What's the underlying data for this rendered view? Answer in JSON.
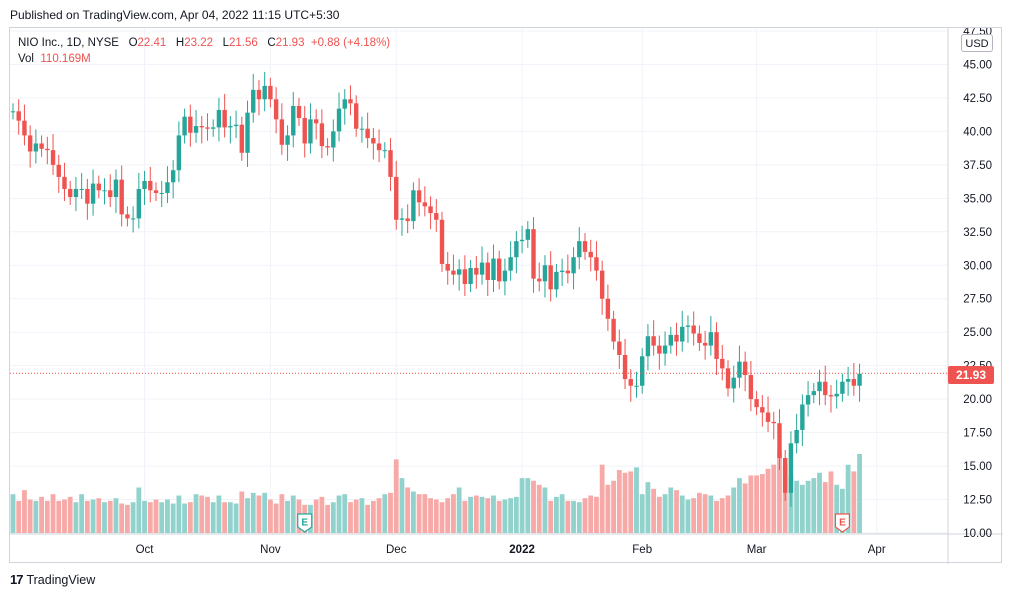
{
  "header": {
    "published_text": "Published on TradingView.com, Apr 04, 2022 11:15 UTC+5:30"
  },
  "legend": {
    "symbol": "NIO Inc., 1D, NYSE",
    "o_label": "O",
    "o_value": "22.41",
    "h_label": "H",
    "h_value": "23.22",
    "l_label": "L",
    "l_value": "21.56",
    "c_label": "C",
    "c_value": "21.93",
    "change": "+0.88 (+4.18%)",
    "vol_label": "Vol",
    "vol_value": "110.169M"
  },
  "price_axis": {
    "currency": "USD",
    "last_price": "21.93"
  },
  "footer": {
    "brand": "TradingView"
  },
  "colors": {
    "up": "#26a69a",
    "down": "#ef5350",
    "up_volume": "#92d2cc",
    "down_volume": "#f7a9a7",
    "grid": "#f0f3fa",
    "axis_text": "#131722"
  },
  "chart_data": {
    "type": "candlestick",
    "y_ticks": [
      "10.00",
      "12.50",
      "15.00",
      "17.50",
      "20.00",
      "22.50",
      "25.00",
      "27.50",
      "30.00",
      "32.50",
      "35.00",
      "37.50",
      "40.00",
      "42.50",
      "45.00",
      "47.50"
    ],
    "ylim": [
      10,
      47.5
    ],
    "x_tick_labels": [
      "Oct",
      "Nov",
      "Dec",
      "2022",
      "Feb",
      "Mar",
      "Apr"
    ],
    "x_tick_index": [
      23,
      45,
      67,
      89,
      110,
      130,
      151
    ],
    "last_close": 21.93,
    "events": [
      {
        "label": "E",
        "index": 51,
        "kind": "earnings-past"
      },
      {
        "label": "E",
        "index": 145,
        "kind": "earnings-upcoming"
      }
    ],
    "closes": [
      41.5,
      40.8,
      39.7,
      38.5,
      39.1,
      38.7,
      38.6,
      37.5,
      36.6,
      35.7,
      35.1,
      35.7,
      35.7,
      34.6,
      36.1,
      35.6,
      35.6,
      35.1,
      36.4,
      33.8,
      33.5,
      33.5,
      35.7,
      36.3,
      35.6,
      35.4,
      35.4,
      36.2,
      37.1,
      39.7,
      41.1,
      39.9,
      40.4,
      40.3,
      40.2,
      40.3,
      41.6,
      40.3,
      40.4,
      40.5,
      38.4,
      41.4,
      43.1,
      42.4,
      43.4,
      42.4,
      40.9,
      39.0,
      39.7,
      41.9,
      41.0,
      39.1,
      40.9,
      40.6,
      38.9,
      38.8,
      40.0,
      41.7,
      42.4,
      42.1,
      40.2,
      40.2,
      39.5,
      39.1,
      38.6,
      38.6,
      36.6,
      33.4,
      33.5,
      33.3,
      35.6,
      34.7,
      34.4,
      33.9,
      33.4,
      30.1,
      29.6,
      29.3,
      29.7,
      28.6,
      29.8,
      29.3,
      30.2,
      28.9,
      30.5,
      28.8,
      29.6,
      30.6,
      31.8,
      31.9,
      32.7,
      29.0,
      28.8,
      30.0,
      28.2,
      29.5,
      29.6,
      29.4,
      30.6,
      31.8,
      31.0,
      30.6,
      29.6,
      27.5,
      26.0,
      24.3,
      23.3,
      21.5,
      21.0,
      21.0,
      23.2,
      24.7,
      24.0,
      23.4,
      24.0,
      24.8,
      24.3,
      25.4,
      25.5,
      24.9,
      24.2,
      24.0,
      25.0,
      23.0,
      22.3,
      20.8,
      21.6,
      22.8,
      21.8,
      20.0,
      19.4,
      19.0,
      18.3,
      18.2,
      15.6,
      13.0,
      16.7,
      17.7,
      19.6,
      20.3,
      20.6,
      21.3,
      20.3,
      20.2,
      20.4,
      21.3,
      21.5,
      21.0,
      21.9
    ],
    "volumes": [
      12.9,
      12.4,
      13.2,
      12.5,
      12.4,
      12.7,
      12.4,
      12.9,
      12.4,
      12.5,
      12.7,
      12.3,
      12.9,
      12.4,
      12.5,
      12.6,
      12.3,
      12.4,
      12.6,
      12.2,
      12.1,
      12.3,
      13.4,
      12.4,
      12.3,
      12.5,
      12.3,
      12.5,
      12.2,
      12.8,
      12.2,
      12.3,
      12.9,
      12.8,
      12.7,
      12.3,
      12.8,
      12.3,
      12.3,
      12.2,
      13.1,
      12.6,
      13.0,
      12.8,
      13.0,
      12.5,
      12.2,
      12.9,
      12.4,
      12.8,
      12.5,
      12.1,
      12.1,
      12.5,
      12.7,
      12.1,
      12.3,
      12.8,
      12.9,
      12.3,
      12.5,
      12.6,
      12.1,
      12.4,
      12.6,
      12.9,
      13.0,
      15.5,
      14.1,
      13.4,
      13.1,
      12.9,
      12.9,
      12.6,
      12.5,
      12.3,
      12.6,
      12.9,
      13.4,
      12.4,
      12.7,
      12.8,
      12.7,
      12.6,
      12.8,
      12.4,
      12.5,
      12.6,
      12.7,
      14.1,
      14.1,
      13.9,
      13.6,
      13.4,
      12.4,
      12.7,
      12.9,
      12.4,
      12.4,
      12.3,
      12.6,
      12.8,
      12.7,
      15.1,
      13.6,
      13.9,
      14.7,
      14.5,
      14.6,
      14.9,
      12.9,
      13.8,
      13.3,
      12.7,
      12.9,
      13.4,
      13.2,
      12.8,
      12.5,
      12.6,
      13.0,
      12.9,
      12.8,
      12.4,
      12.6,
      12.8,
      13.4,
      14.1,
      13.7,
      14.3,
      14.3,
      14.4,
      14.8,
      15.1,
      16.1,
      15.0,
      14.3,
      13.9,
      13.6,
      13.9,
      14.1,
      14.5,
      13.8,
      14.6,
      13.6,
      13.3,
      15.1,
      14.6,
      15.9
    ]
  }
}
